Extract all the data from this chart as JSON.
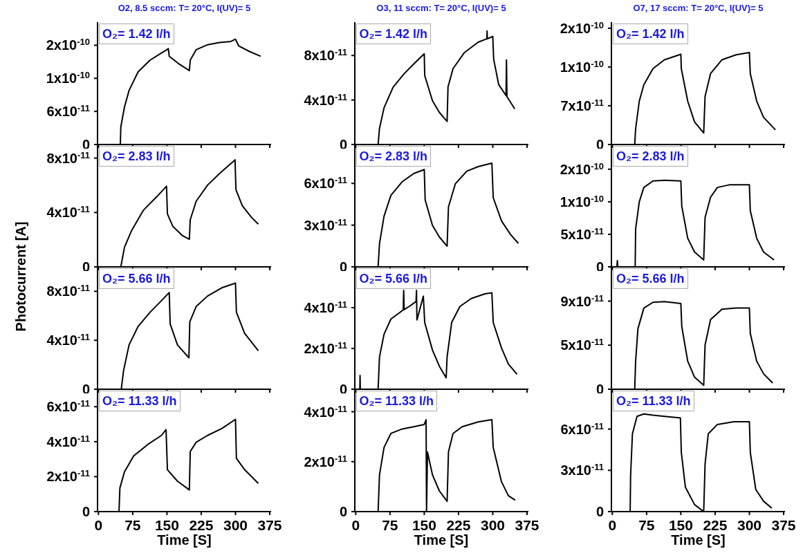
{
  "chart_data": [
    {
      "type": "line",
      "title": "O2, 8.5 sccm: T= 20°C, I(UV)= 5",
      "annotations": [
        "O₂= 1.42 l/h"
      ],
      "xlim": [
        -2,
        378
      ],
      "xticks": [
        0,
        75,
        150,
        225,
        300,
        375
      ],
      "ylim": [
        0,
        2.22e-10
      ],
      "yticks": [
        {
          "value": 0,
          "label": "0"
        },
        {
          "value": 6e-11,
          "label": "6x10$^{-11}$"
        },
        {
          "value": 1.2e-10,
          "label": "1x10$^{-10}$"
        },
        {
          "value": 1.8e-10,
          "label": "2x10$^{-10}$"
        }
      ],
      "tick_labels": "y",
      "x": [
        0,
        20,
        40,
        48,
        49,
        57,
        67,
        87,
        113,
        138,
        150,
        153,
        155,
        175,
        199,
        201,
        214,
        239,
        265,
        290,
        300,
        307,
        330,
        355
      ],
      "series": [
        {
          "color": "#000000",
          "values": [
            0,
            0,
            0,
            0,
            3.2e-11,
            6.8e-11,
            9.8e-11,
            1.32e-10,
            1.53e-10,
            1.66e-10,
            1.72e-10,
            1.74e-10,
            1.6e-10,
            1.47e-10,
            1.34e-10,
            1.53e-10,
            1.72e-10,
            1.81e-10,
            1.85e-10,
            1.87e-10,
            1.91e-10,
            1.79e-10,
            1.69e-10,
            1.6e-10
          ]
        }
      ]
    },
    {
      "type": "line",
      "title": "O3, 11 sccm: T= 20°C, I(UV)= 5",
      "annotations": [
        "O₂= 1.42 l/h"
      ],
      "xlim": [
        -2,
        378
      ],
      "xticks": [
        0,
        75,
        150,
        225,
        300,
        375
      ],
      "ylim": [
        0,
        1.1e-10
      ],
      "yticks": [
        {
          "value": 0,
          "label": "0"
        },
        {
          "value": 4e-11,
          "label": "4x10$^{-11}$"
        },
        {
          "value": 8e-11,
          "label": "8x10$^{-11}$"
        }
      ],
      "tick_labels": "y",
      "x": [
        0,
        27,
        49,
        52,
        62,
        82,
        107,
        132,
        150,
        151,
        168,
        183,
        200,
        202,
        213,
        238,
        268,
        287,
        287.5,
        288,
        300,
        302,
        313,
        329,
        330,
        331,
        348
      ],
      "series": [
        {
          "color": "#000000",
          "values": [
            0,
            0,
            0,
            1.45e-11,
            3.3e-11,
            5.17e-11,
            6.41e-11,
            7.44e-11,
            8.16e-11,
            6.2e-11,
            3.93e-11,
            2.89e-11,
            2.07e-11,
            5.17e-11,
            6.82e-11,
            8.27e-11,
            9.2e-11,
            9.5e-11,
            1.02e-10,
            9.5e-11,
            9.71e-11,
            7.65e-11,
            5.38e-11,
            4.4e-11,
            7.6e-11,
            4.3e-11,
            3.2e-11
          ]
        }
      ]
    },
    {
      "type": "line",
      "title": "O7, 17 sccm: T= 20°C, I(UV)= 5",
      "annotations": [
        "O₂= 1.42 l/h"
      ],
      "xlim": [
        -2,
        378
      ],
      "xticks": [
        0,
        75,
        150,
        225,
        300,
        375
      ],
      "ylim": [
        0,
        2.21e-10
      ],
      "yticks": [
        {
          "value": 0,
          "label": "0"
        },
        {
          "value": 7e-11,
          "label": "7x10$^{-11}$"
        },
        {
          "value": 1.4e-10,
          "label": "1x10$^{-10}$"
        },
        {
          "value": 2.1e-10,
          "label": "2x10$^{-10}$"
        }
      ],
      "tick_labels": "y",
      "x": [
        0,
        49,
        51,
        59,
        69,
        89,
        114,
        150,
        151,
        165,
        180,
        200,
        203,
        215,
        240,
        271,
        300,
        302,
        316,
        331,
        357
      ],
      "series": [
        {
          "color": "#000000",
          "values": [
            0,
            0,
            2.83e-11,
            7.83e-11,
            1.08e-10,
            1.37e-10,
            1.53e-10,
            1.63e-10,
            1.37e-10,
            7.83e-11,
            4.08e-11,
            2.08e-11,
            8.67e-11,
            1.28e-10,
            1.53e-10,
            1.62e-10,
            1.66e-10,
            1.28e-10,
            7.83e-11,
            4.92e-11,
            2.63e-11
          ]
        }
      ]
    },
    {
      "type": "line",
      "ylabel": "Photocurrent [A]",
      "annotations": [
        "O₂= 2.83 l/h"
      ],
      "xlim": [
        -2,
        378
      ],
      "xticks": [
        0,
        75,
        150,
        225,
        300,
        375
      ],
      "ylim": [
        0,
        9e-11
      ],
      "yticks": [
        {
          "value": 0,
          "label": "0"
        },
        {
          "value": 4e-11,
          "label": "4x10$^{-11}$"
        },
        {
          "value": 8e-11,
          "label": "8x10$^{-11}$"
        }
      ],
      "tick_labels": "y",
      "x": [
        0,
        25,
        49,
        57,
        72,
        98,
        128,
        149,
        151,
        163,
        184,
        199,
        201,
        214,
        239,
        265,
        297,
        299,
        301,
        315,
        335,
        350
      ],
      "series": [
        {
          "color": "#000000",
          "values": [
            0,
            0,
            0,
            1.44e-11,
            2.63e-11,
            4.15e-11,
            5.17e-11,
            5.93e-11,
            3.9e-11,
            2.97e-11,
            2.29e-11,
            2.03e-11,
            3.47e-11,
            4.83e-11,
            6.02e-11,
            6.86e-11,
            7.8e-11,
            7.88e-11,
            5.68e-11,
            4.49e-11,
            3.64e-11,
            3.14e-11
          ]
        }
      ]
    },
    {
      "type": "line",
      "annotations": [
        "O₂= 2.83 l/h"
      ],
      "xlim": [
        -2,
        378
      ],
      "xticks": [
        0,
        75,
        150,
        225,
        300,
        375
      ],
      "ylim": [
        0,
        8.8e-11
      ],
      "yticks": [
        {
          "value": 0,
          "label": "0"
        },
        {
          "value": 3e-11,
          "label": "3x10$^{-11}$"
        },
        {
          "value": 6e-11,
          "label": "6x10$^{-11}$"
        }
      ],
      "tick_labels": "y",
      "x": [
        0,
        49,
        52,
        62,
        77,
        102,
        127,
        150,
        152,
        168,
        183,
        200,
        203,
        218,
        243,
        268,
        298,
        301,
        319,
        339,
        356
      ],
      "series": [
        {
          "color": "#000000",
          "values": [
            0,
            0,
            1.66e-11,
            3.65e-11,
            5.14e-11,
            6.13e-11,
            6.71e-11,
            7e-11,
            4.81e-11,
            2.98e-11,
            2.15e-11,
            1.49e-11,
            4.31e-11,
            5.97e-11,
            6.88e-11,
            7.21e-11,
            7.46e-11,
            4.97e-11,
            3.31e-11,
            2.32e-11,
            1.69e-11
          ]
        }
      ]
    },
    {
      "type": "line",
      "annotations": [
        "O₂= 2.83 l/h"
      ],
      "xlim": [
        -2,
        378
      ],
      "xticks": [
        0,
        75,
        150,
        225,
        300,
        375
      ],
      "ylim": [
        0,
        1.88e-10
      ],
      "yticks": [
        {
          "value": 0,
          "label": "0"
        },
        {
          "value": 5e-11,
          "label": "5x10$^{-11}$"
        },
        {
          "value": 1e-10,
          "label": "1x10$^{-10}$"
        },
        {
          "value": 1.5e-10,
          "label": "2x10$^{-10}$"
        }
      ],
      "tick_labels": "y",
      "x": [
        0,
        10,
        11,
        12,
        50,
        51,
        59,
        69,
        89,
        114,
        150,
        152,
        165,
        180,
        200,
        203,
        215,
        230,
        256,
        300,
        302,
        316,
        331,
        354
      ],
      "series": [
        {
          "color": "#000000",
          "values": [
            0,
            0,
            9.5e-12,
            0,
            0,
            5.81e-11,
            1e-10,
            1.22e-10,
            1.32e-10,
            1.33e-10,
            1.32e-10,
            9.33e-11,
            4.4e-11,
            2.29e-11,
            1.06e-11,
            7.57e-11,
            1.07e-10,
            1.22e-10,
            1.26e-10,
            1.26e-10,
            8.63e-11,
            4.4e-11,
            2.29e-11,
            1.06e-11
          ]
        }
      ]
    },
    {
      "type": "line",
      "annotations": [
        "O₂= 5.66 l/h"
      ],
      "xlim": [
        -2,
        378
      ],
      "xticks": [
        0,
        75,
        150,
        225,
        300,
        375
      ],
      "ylim": [
        0,
        1e-10
      ],
      "yticks": [
        {
          "value": 0,
          "label": "0"
        },
        {
          "value": 4e-11,
          "label": "4x10$^{-11}$"
        },
        {
          "value": 8e-11,
          "label": "8x10$^{-11}$"
        }
      ],
      "tick_labels": "y",
      "x": [
        0,
        25,
        50,
        55,
        67,
        87,
        113,
        138,
        155,
        157,
        173,
        198,
        200,
        214,
        239,
        270,
        300,
        302,
        320,
        350
      ],
      "series": [
        {
          "color": "#000000",
          "values": [
            0,
            0,
            0,
            1.52e-11,
            3.62e-11,
            5.14e-11,
            6.29e-11,
            7.24e-11,
            7.9e-11,
            5.33e-11,
            3.62e-11,
            2.57e-11,
            5.52e-11,
            6.76e-11,
            7.62e-11,
            8.29e-11,
            8.67e-11,
            6.29e-11,
            4.57e-11,
            3.14e-11
          ]
        }
      ]
    },
    {
      "type": "line",
      "annotations": [
        "O₂= 5.66 l/h"
      ],
      "xlim": [
        -2,
        378
      ],
      "xticks": [
        0,
        75,
        150,
        225,
        300,
        375
      ],
      "ylim": [
        0,
        6e-11
      ],
      "yticks": [
        {
          "value": 0,
          "label": "0"
        },
        {
          "value": 2e-11,
          "label": "2x10$^{-11}$"
        },
        {
          "value": 4e-11,
          "label": "4x10$^{-11}$"
        }
      ],
      "tick_labels": "y",
      "x": [
        0,
        9,
        9.5,
        10,
        49,
        52,
        62,
        77,
        97,
        104,
        105,
        106,
        117,
        132,
        133,
        134,
        148,
        151,
        168,
        183,
        198,
        200,
        210,
        228,
        253,
        283,
        298,
        301,
        319,
        334,
        353
      ],
      "series": [
        {
          "color": "#000000",
          "values": [
            0,
            0,
            6.8e-12,
            0,
            0,
            1.58e-11,
            2.7e-11,
            3.44e-11,
            3.77e-11,
            3.9e-11,
            4.85e-11,
            3.9e-11,
            4.06e-11,
            4.3e-11,
            4.85e-11,
            3.4e-11,
            4.56e-11,
            3.27e-11,
            1.92e-11,
            1.13e-11,
            5.6e-12,
            1.58e-11,
            3.27e-11,
            4.06e-11,
            4.45e-11,
            4.68e-11,
            4.73e-11,
            3.27e-11,
            2.03e-11,
            1.24e-11,
            7.3e-12
          ]
        }
      ]
    },
    {
      "type": "line",
      "annotations": [
        "O₂= 5.66 l/h"
      ],
      "xlim": [
        -2,
        378
      ],
      "xticks": [
        0,
        75,
        150,
        225,
        300,
        375
      ],
      "ylim": [
        0,
        1.25e-10
      ],
      "yticks": [
        {
          "value": 0,
          "label": "0"
        },
        {
          "value": 4.5e-11,
          "label": "5x10$^{-11}$"
        },
        {
          "value": 9e-11,
          "label": "9x10$^{-11}$"
        }
      ],
      "tick_labels": "y",
      "x": [
        0,
        49,
        51,
        56,
        69,
        89,
        114,
        150,
        152,
        165,
        180,
        200,
        203,
        215,
        240,
        271,
        300,
        302,
        316,
        331,
        351
      ],
      "series": [
        {
          "color": "#000000",
          "values": [
            0,
            0,
            2.87e-11,
            6.17e-11,
            8.29e-11,
            8.88e-11,
            8.95e-11,
            8.76e-11,
            6.41e-11,
            2.87e-11,
            1.23e-11,
            4e-12,
            4.52e-11,
            7.12e-11,
            8.18e-11,
            8.29e-11,
            8.29e-11,
            5.7e-11,
            2.87e-11,
            1.58e-11,
            6.4e-12
          ]
        }
      ]
    },
    {
      "type": "line",
      "xlabel": "Time [S]",
      "annotations": [
        "O₂= 11.33 l/h"
      ],
      "xlim": [
        -2,
        378
      ],
      "xticks": [
        0,
        75,
        150,
        225,
        300,
        375
      ],
      "ylim": [
        0,
        7e-11
      ],
      "yticks": [
        {
          "value": 0,
          "label": "0"
        },
        {
          "value": 2e-11,
          "label": "2x10$^{-11}$"
        },
        {
          "value": 4e-11,
          "label": "4x10$^{-11}$"
        },
        {
          "value": 6e-11,
          "label": "6x10$^{-11}$"
        }
      ],
      "x": [
        0,
        22,
        45,
        47,
        57,
        77,
        108,
        138,
        148,
        151,
        173,
        199,
        201,
        214,
        239,
        270,
        300,
        302,
        320,
        350
      ],
      "series": [
        {
          "color": "#000000",
          "values": [
            0,
            0,
            0,
            1.35e-11,
            2.27e-11,
            3.18e-11,
            3.84e-11,
            4.36e-11,
            4.69e-11,
            2.4e-11,
            1.74e-11,
            1.24e-11,
            3.44e-11,
            3.97e-11,
            4.36e-11,
            4.75e-11,
            5.28e-11,
            3.05e-11,
            2.4e-11,
            1.61e-11
          ]
        }
      ]
    },
    {
      "type": "line",
      "xlabel": "Time [S]",
      "annotations": [
        "O₂= 11.33 l/h"
      ],
      "xlim": [
        -2,
        378
      ],
      "xticks": [
        0,
        75,
        150,
        225,
        300,
        375
      ],
      "ylim": [
        0,
        4.9e-11
      ],
      "yticks": [
        {
          "value": 0,
          "label": "0"
        },
        {
          "value": 2e-11,
          "label": "2x10$^{-11}$"
        },
        {
          "value": 4e-11,
          "label": "4x10$^{-11}$"
        }
      ],
      "x": [
        0,
        49,
        52,
        62,
        77,
        102,
        127,
        150,
        154,
        155,
        157,
        168,
        183,
        200,
        203,
        213,
        233,
        268,
        298,
        301,
        319,
        334,
        349
      ],
      "series": [
        {
          "color": "#000000",
          "values": [
            0,
            0,
            1.47e-11,
            2.57e-11,
            3.13e-11,
            3.31e-11,
            3.4e-11,
            3.49e-11,
            3.68e-11,
            0,
            2.39e-11,
            1.47e-11,
            8.3e-12,
            4.1e-12,
            2.39e-11,
            3.13e-11,
            3.4e-11,
            3.59e-11,
            3.68e-11,
            2.57e-11,
            1.2e-11,
            6.4e-12,
            4.6e-12
          ]
        }
      ]
    },
    {
      "type": "line",
      "xlabel": "Time [S]",
      "annotations": [
        "O₂= 11.33 l/h"
      ],
      "xlim": [
        -2,
        378
      ],
      "xticks": [
        0,
        75,
        150,
        225,
        300,
        375
      ],
      "ylim": [
        0,
        8.9e-11
      ],
      "yticks": [
        {
          "value": 0,
          "label": "0"
        },
        {
          "value": 3e-11,
          "label": "3x10$^{-11}$"
        },
        {
          "value": 6e-11,
          "label": "6x10$^{-11}$"
        }
      ],
      "x": [
        0,
        39,
        40,
        44,
        54,
        69,
        89,
        114,
        149,
        151,
        160,
        180,
        200,
        203,
        210,
        230,
        266,
        300,
        302,
        314,
        331,
        349
      ],
      "series": [
        {
          "color": "#000000",
          "values": [
            0,
            0,
            2.62e-11,
            5.66e-11,
            6.93e-11,
            7.1e-11,
            7.01e-11,
            6.93e-11,
            6.81e-11,
            4.31e-11,
            1.77e-11,
            5.1e-12,
            0,
            3.46e-11,
            5.66e-11,
            6.34e-11,
            6.54e-11,
            6.54e-11,
            4.31e-11,
            1.61e-11,
            7.6e-12,
            2.5e-12
          ]
        }
      ]
    }
  ]
}
